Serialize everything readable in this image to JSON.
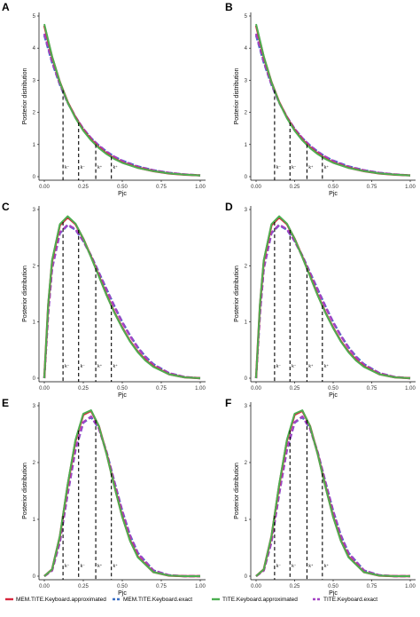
{
  "chart_data": [
    {
      "panel": "A",
      "type": "line",
      "xlabel": "Pjc",
      "ylabel": "Posterior distribution",
      "xlim": [
        0,
        1
      ],
      "ylim": [
        0,
        5
      ],
      "xticks": [
        "0.00",
        "0.25",
        "0.50",
        "0.75",
        "1.00"
      ],
      "yticks": [
        "0",
        "1",
        "2",
        "3",
        "4",
        "5"
      ],
      "grid": false,
      "x": [
        0,
        0.05,
        0.1,
        0.15,
        0.2,
        0.25,
        0.3,
        0.35,
        0.4,
        0.45,
        0.5,
        0.6,
        0.7,
        0.8,
        0.9,
        1.0
      ],
      "series": [
        {
          "name": "MEM.TITE.Keyboard.approximated",
          "values": [
            4.7,
            3.72,
            2.94,
            2.32,
            1.84,
            1.45,
            1.15,
            0.91,
            0.72,
            0.56,
            0.44,
            0.28,
            0.17,
            0.1,
            0.06,
            0.04
          ]
        },
        {
          "name": "MEM.TITE.Keyboard.exact",
          "values": [
            4.4,
            3.55,
            2.86,
            2.3,
            1.86,
            1.49,
            1.2,
            0.97,
            0.78,
            0.62,
            0.5,
            0.32,
            0.2,
            0.12,
            0.07,
            0.04
          ]
        },
        {
          "name": "TITE.Keyboard.approximated",
          "values": [
            4.75,
            3.74,
            2.94,
            2.31,
            1.82,
            1.43,
            1.13,
            0.89,
            0.7,
            0.55,
            0.43,
            0.27,
            0.17,
            0.1,
            0.06,
            0.04
          ]
        },
        {
          "name": "TITE.Keyboard.exact",
          "values": [
            4.45,
            3.58,
            2.88,
            2.31,
            1.86,
            1.49,
            1.2,
            0.96,
            0.77,
            0.62,
            0.49,
            0.31,
            0.2,
            0.12,
            0.07,
            0.04
          ]
        }
      ],
      "vlines": [
        0.12,
        0.22,
        0.33,
        0.43
      ],
      "k_labels": [
        "k⁻",
        "k⁻",
        "k⁺",
        "k⁺"
      ]
    },
    {
      "panel": "B",
      "type": "line",
      "xlabel": "Pjc",
      "ylabel": "Posterior distribution",
      "xlim": [
        0,
        1
      ],
      "ylim": [
        0,
        5
      ],
      "xticks": [
        "0.00",
        "0.25",
        "0.50",
        "0.75",
        "1.00"
      ],
      "yticks": [
        "0",
        "1",
        "2",
        "3",
        "4",
        "5"
      ],
      "grid": false,
      "x": [
        0,
        0.05,
        0.1,
        0.15,
        0.2,
        0.25,
        0.3,
        0.35,
        0.4,
        0.45,
        0.5,
        0.6,
        0.7,
        0.8,
        0.9,
        1.0
      ],
      "series": [
        {
          "name": "MEM.TITE.Keyboard.approximated",
          "values": [
            4.7,
            3.72,
            2.94,
            2.32,
            1.84,
            1.45,
            1.15,
            0.91,
            0.72,
            0.56,
            0.44,
            0.28,
            0.17,
            0.1,
            0.06,
            0.04
          ]
        },
        {
          "name": "MEM.TITE.Keyboard.exact",
          "values": [
            4.4,
            3.55,
            2.86,
            2.3,
            1.86,
            1.49,
            1.2,
            0.97,
            0.78,
            0.62,
            0.5,
            0.32,
            0.2,
            0.12,
            0.07,
            0.04
          ]
        },
        {
          "name": "TITE.Keyboard.approximated",
          "values": [
            4.75,
            3.74,
            2.94,
            2.31,
            1.82,
            1.43,
            1.13,
            0.89,
            0.7,
            0.55,
            0.43,
            0.27,
            0.17,
            0.1,
            0.06,
            0.04
          ]
        },
        {
          "name": "TITE.Keyboard.exact",
          "values": [
            4.45,
            3.58,
            2.88,
            2.31,
            1.86,
            1.49,
            1.2,
            0.96,
            0.77,
            0.62,
            0.49,
            0.31,
            0.2,
            0.12,
            0.07,
            0.04
          ]
        }
      ],
      "vlines": [
        0.12,
        0.22,
        0.33,
        0.43
      ],
      "k_labels": [
        "k⁻",
        "k⁻",
        "k⁺",
        "k⁺"
      ]
    },
    {
      "panel": "C",
      "type": "line",
      "xlabel": "Pjc",
      "ylabel": "Posterior distribution",
      "xlim": [
        0,
        1
      ],
      "ylim": [
        0,
        3
      ],
      "xticks": [
        "0.00",
        "0.25",
        "0.50",
        "0.75",
        "1.00"
      ],
      "yticks": [
        "0",
        "1",
        "2",
        "3"
      ],
      "grid": false,
      "x": [
        0,
        0.025,
        0.05,
        0.1,
        0.15,
        0.2,
        0.25,
        0.3,
        0.35,
        0.4,
        0.45,
        0.5,
        0.55,
        0.6,
        0.65,
        0.7,
        0.8,
        0.9,
        1.0
      ],
      "series": [
        {
          "name": "MEM.TITE.Keyboard.approximated",
          "values": [
            0,
            1.3,
            2.08,
            2.72,
            2.86,
            2.74,
            2.48,
            2.16,
            1.82,
            1.48,
            1.17,
            0.9,
            0.66,
            0.47,
            0.32,
            0.21,
            0.07,
            0.015,
            0
          ]
        },
        {
          "name": "MEM.TITE.Keyboard.exact",
          "values": [
            0,
            1.15,
            1.95,
            2.58,
            2.72,
            2.64,
            2.44,
            2.18,
            1.88,
            1.58,
            1.28,
            1.0,
            0.76,
            0.55,
            0.38,
            0.25,
            0.09,
            0.02,
            0
          ]
        },
        {
          "name": "TITE.Keyboard.approximated",
          "values": [
            0,
            1.32,
            2.1,
            2.74,
            2.88,
            2.75,
            2.48,
            2.15,
            1.81,
            1.47,
            1.16,
            0.89,
            0.65,
            0.46,
            0.31,
            0.2,
            0.07,
            0.015,
            0
          ]
        },
        {
          "name": "TITE.Keyboard.exact",
          "values": [
            0,
            1.16,
            1.96,
            2.59,
            2.73,
            2.65,
            2.44,
            2.17,
            1.87,
            1.57,
            1.27,
            0.99,
            0.75,
            0.54,
            0.37,
            0.24,
            0.09,
            0.02,
            0
          ]
        }
      ],
      "vlines": [
        0.12,
        0.22,
        0.33,
        0.43
      ],
      "k_labels": [
        "k⁻",
        "k⁻",
        "k⁺",
        "k⁺"
      ]
    },
    {
      "panel": "D",
      "type": "line",
      "xlabel": "Pjc",
      "ylabel": "Posterior distribution",
      "xlim": [
        0,
        1
      ],
      "ylim": [
        0,
        3
      ],
      "xticks": [
        "0.00",
        "0.25",
        "0.50",
        "0.75",
        "1.00"
      ],
      "yticks": [
        "0",
        "1",
        "2",
        "3"
      ],
      "grid": false,
      "x": [
        0,
        0.025,
        0.05,
        0.1,
        0.15,
        0.2,
        0.25,
        0.3,
        0.35,
        0.4,
        0.45,
        0.5,
        0.55,
        0.6,
        0.65,
        0.7,
        0.8,
        0.9,
        1.0
      ],
      "series": [
        {
          "name": "MEM.TITE.Keyboard.approximated",
          "values": [
            0,
            1.3,
            2.08,
            2.72,
            2.86,
            2.74,
            2.48,
            2.16,
            1.82,
            1.48,
            1.17,
            0.9,
            0.66,
            0.47,
            0.32,
            0.21,
            0.07,
            0.015,
            0
          ]
        },
        {
          "name": "MEM.TITE.Keyboard.exact",
          "values": [
            0,
            1.15,
            1.95,
            2.58,
            2.72,
            2.64,
            2.44,
            2.18,
            1.88,
            1.58,
            1.28,
            1.0,
            0.76,
            0.55,
            0.38,
            0.25,
            0.09,
            0.02,
            0
          ]
        },
        {
          "name": "TITE.Keyboard.approximated",
          "values": [
            0,
            1.32,
            2.1,
            2.74,
            2.88,
            2.75,
            2.48,
            2.15,
            1.81,
            1.47,
            1.16,
            0.89,
            0.65,
            0.46,
            0.31,
            0.2,
            0.07,
            0.015,
            0
          ]
        },
        {
          "name": "TITE.Keyboard.exact",
          "values": [
            0,
            1.16,
            1.96,
            2.59,
            2.73,
            2.65,
            2.44,
            2.17,
            1.87,
            1.57,
            1.27,
            0.99,
            0.75,
            0.54,
            0.37,
            0.24,
            0.09,
            0.02,
            0
          ]
        }
      ],
      "vlines": [
        0.12,
        0.22,
        0.33,
        0.43
      ],
      "k_labels": [
        "k⁻",
        "k⁻",
        "k⁺",
        "k⁺"
      ]
    },
    {
      "panel": "E",
      "type": "line",
      "xlabel": "Pjc",
      "ylabel": "Posterior distribution",
      "xlim": [
        0,
        1
      ],
      "ylim": [
        0,
        3
      ],
      "xticks": [
        "0.00",
        "0.25",
        "0.50",
        "0.75",
        "1.00"
      ],
      "yticks": [
        "0",
        "1",
        "2",
        "3"
      ],
      "grid": false,
      "x": [
        0,
        0.05,
        0.1,
        0.15,
        0.2,
        0.25,
        0.3,
        0.35,
        0.4,
        0.45,
        0.5,
        0.55,
        0.6,
        0.7,
        0.8,
        0.9,
        1.0
      ],
      "series": [
        {
          "name": "MEM.TITE.Keyboard.approximated",
          "values": [
            0,
            0.12,
            0.7,
            1.6,
            2.38,
            2.84,
            2.91,
            2.64,
            2.15,
            1.58,
            1.05,
            0.63,
            0.34,
            0.07,
            0.01,
            0,
            0
          ]
        },
        {
          "name": "MEM.TITE.Keyboard.exact",
          "values": [
            0,
            0.1,
            0.6,
            1.45,
            2.22,
            2.7,
            2.8,
            2.6,
            2.18,
            1.66,
            1.15,
            0.72,
            0.41,
            0.1,
            0.015,
            0,
            0
          ]
        },
        {
          "name": "TITE.Keyboard.approximated",
          "values": [
            0,
            0.12,
            0.71,
            1.62,
            2.4,
            2.86,
            2.92,
            2.64,
            2.14,
            1.57,
            1.04,
            0.62,
            0.33,
            0.07,
            0.01,
            0,
            0
          ]
        },
        {
          "name": "TITE.Keyboard.exact",
          "values": [
            0,
            0.1,
            0.61,
            1.46,
            2.23,
            2.71,
            2.81,
            2.6,
            2.17,
            1.65,
            1.14,
            0.71,
            0.4,
            0.1,
            0.015,
            0,
            0
          ]
        }
      ],
      "vlines": [
        0.12,
        0.22,
        0.33,
        0.43
      ],
      "k_labels": [
        "k⁻",
        "k⁻",
        "k⁺",
        "k⁺"
      ]
    },
    {
      "panel": "F",
      "type": "line",
      "xlabel": "Pjc",
      "ylabel": "Posterior distribution",
      "xlim": [
        0,
        1
      ],
      "ylim": [
        0,
        3
      ],
      "xticks": [
        "0.00",
        "0.25",
        "0.50",
        "0.75",
        "1.00"
      ],
      "yticks": [
        "0",
        "1",
        "2",
        "3"
      ],
      "grid": false,
      "x": [
        0,
        0.05,
        0.1,
        0.15,
        0.2,
        0.25,
        0.3,
        0.35,
        0.4,
        0.45,
        0.5,
        0.55,
        0.6,
        0.7,
        0.8,
        0.9,
        1.0
      ],
      "series": [
        {
          "name": "MEM.TITE.Keyboard.approximated",
          "values": [
            0,
            0.12,
            0.7,
            1.6,
            2.38,
            2.84,
            2.91,
            2.64,
            2.15,
            1.58,
            1.05,
            0.63,
            0.34,
            0.07,
            0.01,
            0,
            0
          ]
        },
        {
          "name": "MEM.TITE.Keyboard.exact",
          "values": [
            0,
            0.1,
            0.6,
            1.45,
            2.22,
            2.7,
            2.8,
            2.6,
            2.18,
            1.66,
            1.15,
            0.72,
            0.41,
            0.1,
            0.015,
            0,
            0
          ]
        },
        {
          "name": "TITE.Keyboard.approximated",
          "values": [
            0,
            0.12,
            0.71,
            1.62,
            2.4,
            2.86,
            2.92,
            2.64,
            2.14,
            1.57,
            1.04,
            0.62,
            0.33,
            0.07,
            0.01,
            0,
            0
          ]
        },
        {
          "name": "TITE.Keyboard.exact",
          "values": [
            0,
            0.1,
            0.61,
            1.46,
            2.23,
            2.71,
            2.81,
            2.6,
            2.17,
            1.65,
            1.14,
            0.71,
            0.4,
            0.1,
            0.015,
            0,
            0
          ]
        }
      ],
      "vlines": [
        0.12,
        0.22,
        0.33,
        0.43
      ],
      "k_labels": [
        "k⁻",
        "k⁻",
        "k⁺",
        "k⁺"
      ]
    }
  ],
  "legend": {
    "placement": "bottom",
    "items": [
      {
        "label": "MEM.TITE.Keyboard.approximated",
        "color": "#d7263d",
        "dash": "solid"
      },
      {
        "label": "MEM.TITE.Keyboard.exact",
        "color": "#3a6fc4",
        "dash": "dashed"
      },
      {
        "label": "TITE.Keyboard.approximated",
        "color": "#4caf50",
        "dash": "solid"
      },
      {
        "label": "TITE.Keyboard.exact",
        "color": "#a442c4",
        "dash": "dashed"
      }
    ]
  },
  "colors": {
    "axis": "#000000",
    "vline": "#000000"
  }
}
